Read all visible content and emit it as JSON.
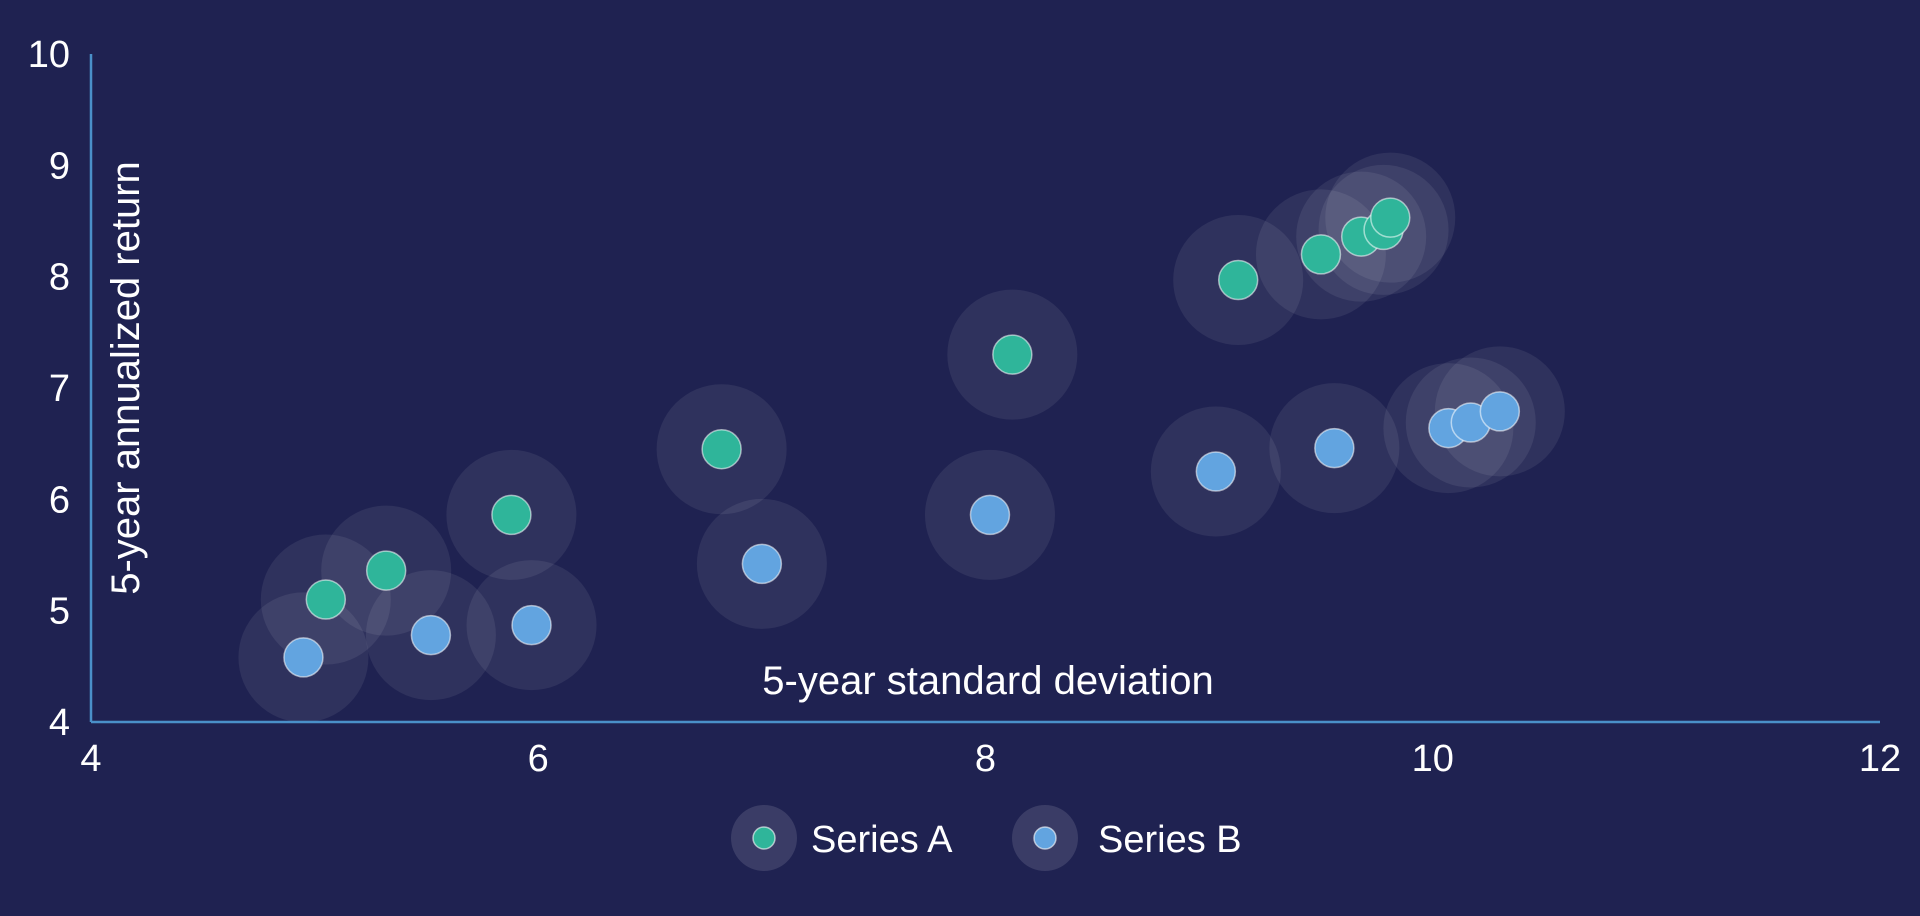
{
  "colors": {
    "background": "#1f2251",
    "axis": "#4a90c9",
    "text": "#ffffff",
    "halo": "#ffffff",
    "marker_stroke": "#ffffff"
  },
  "chart_data": {
    "type": "scatter",
    "xlabel": "5-year standard deviation",
    "ylabel": "5-year annualized return",
    "xlim": [
      4,
      12
    ],
    "ylim": [
      4,
      10
    ],
    "x_ticks": [
      4,
      6,
      8,
      10,
      12
    ],
    "y_ticks": [
      4,
      5,
      6,
      7,
      8,
      9,
      10
    ],
    "grid": false,
    "legend_position": "bottom-center",
    "series": [
      {
        "name": "Series A",
        "color": "#2fb59a",
        "points": [
          {
            "x": 5.05,
            "y": 5.1
          },
          {
            "x": 5.32,
            "y": 5.36
          },
          {
            "x": 5.88,
            "y": 5.86
          },
          {
            "x": 6.82,
            "y": 6.45
          },
          {
            "x": 8.12,
            "y": 7.3
          },
          {
            "x": 9.13,
            "y": 7.97
          },
          {
            "x": 9.5,
            "y": 8.2
          },
          {
            "x": 9.68,
            "y": 8.36
          },
          {
            "x": 9.78,
            "y": 8.42
          },
          {
            "x": 9.81,
            "y": 8.53
          }
        ]
      },
      {
        "name": "Series B",
        "color": "#62a4e0",
        "points": [
          {
            "x": 4.95,
            "y": 4.58
          },
          {
            "x": 5.52,
            "y": 4.78
          },
          {
            "x": 5.97,
            "y": 4.87
          },
          {
            "x": 7.0,
            "y": 5.42
          },
          {
            "x": 8.02,
            "y": 5.86
          },
          {
            "x": 9.03,
            "y": 6.25
          },
          {
            "x": 9.56,
            "y": 6.46
          },
          {
            "x": 10.07,
            "y": 6.64
          },
          {
            "x": 10.17,
            "y": 6.69
          },
          {
            "x": 10.3,
            "y": 6.79
          }
        ]
      }
    ]
  }
}
